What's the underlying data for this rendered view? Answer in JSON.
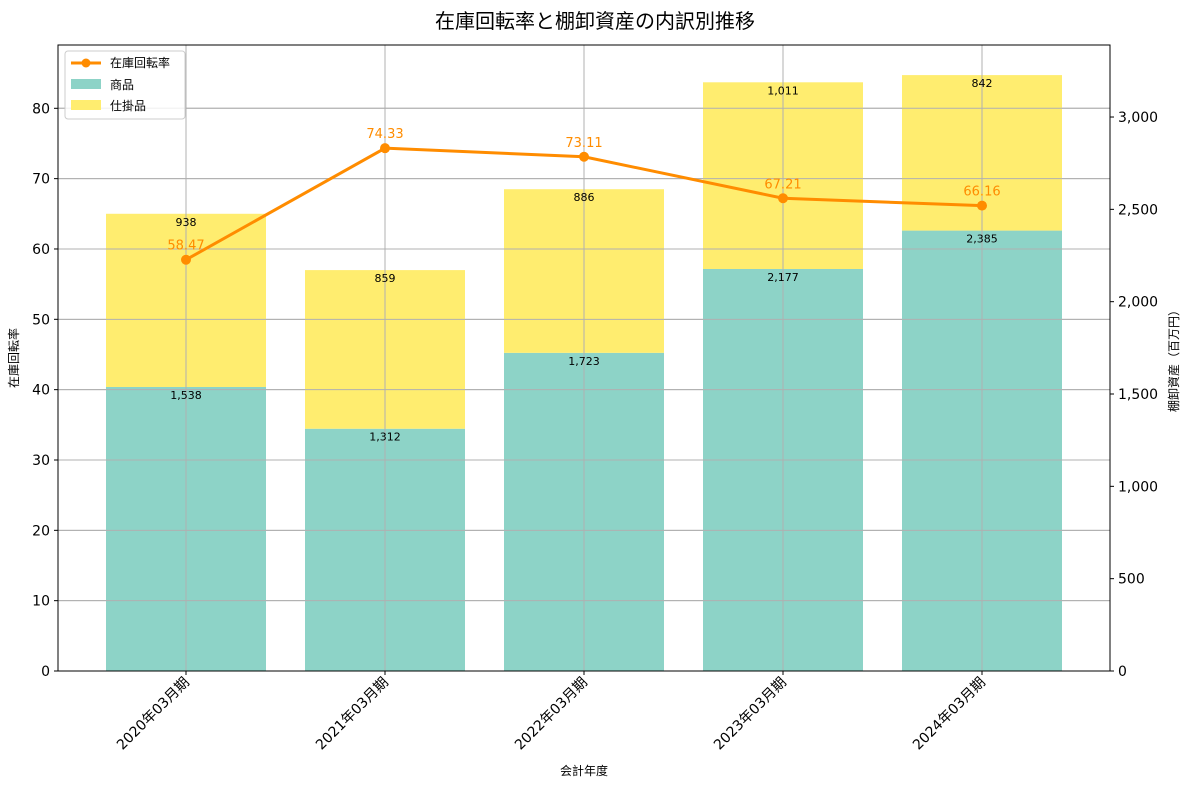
{
  "chart_data": {
    "type": "bar",
    "subtype": "stacked-bar-with-line-dual-axis",
    "title": "在庫回転率と棚卸資産の内訳別推移",
    "xlabel": "会計年度",
    "ylabel_left": "在庫回転率",
    "ylabel_right": "棚卸資産（百万円）",
    "categories": [
      "2020年03月期",
      "2021年03月期",
      "2022年03月期",
      "2023年03月期",
      "2024年03月期"
    ],
    "series": [
      {
        "name": "商品",
        "type": "bar",
        "axis": "right",
        "color": "#8dd3c7",
        "values": [
          1538,
          1312,
          1723,
          2177,
          2385
        ],
        "labels": [
          "1,538",
          "1,312",
          "1,723",
          "2,177",
          "2,385"
        ]
      },
      {
        "name": "仕掛品",
        "type": "bar",
        "axis": "right",
        "color": "#ffed6f",
        "values": [
          938,
          859,
          886,
          1011,
          842
        ],
        "labels": [
          "938",
          "859",
          "886",
          "1,011",
          "842"
        ]
      },
      {
        "name": "在庫回転率",
        "type": "line",
        "axis": "left",
        "color": "#ff8c00",
        "values": [
          58.47,
          74.33,
          73.11,
          67.21,
          66.16
        ],
        "labels": [
          "58.47",
          "74.33",
          "73.11",
          "67.21",
          "66.16"
        ]
      }
    ],
    "ylim_left": [
      0,
      89
    ],
    "ylim_right": [
      0,
      3390
    ],
    "yticks_left": [
      "0",
      "10",
      "20",
      "30",
      "40",
      "50",
      "60",
      "70",
      "80"
    ],
    "yticks_right": [
      "0",
      "500",
      "1,000",
      "1,500",
      "2,000",
      "2,500",
      "3,000"
    ],
    "grid": true,
    "legend_position": "upper left"
  },
  "legend": {
    "items": [
      "在庫回転率",
      "商品",
      "仕掛品"
    ]
  }
}
